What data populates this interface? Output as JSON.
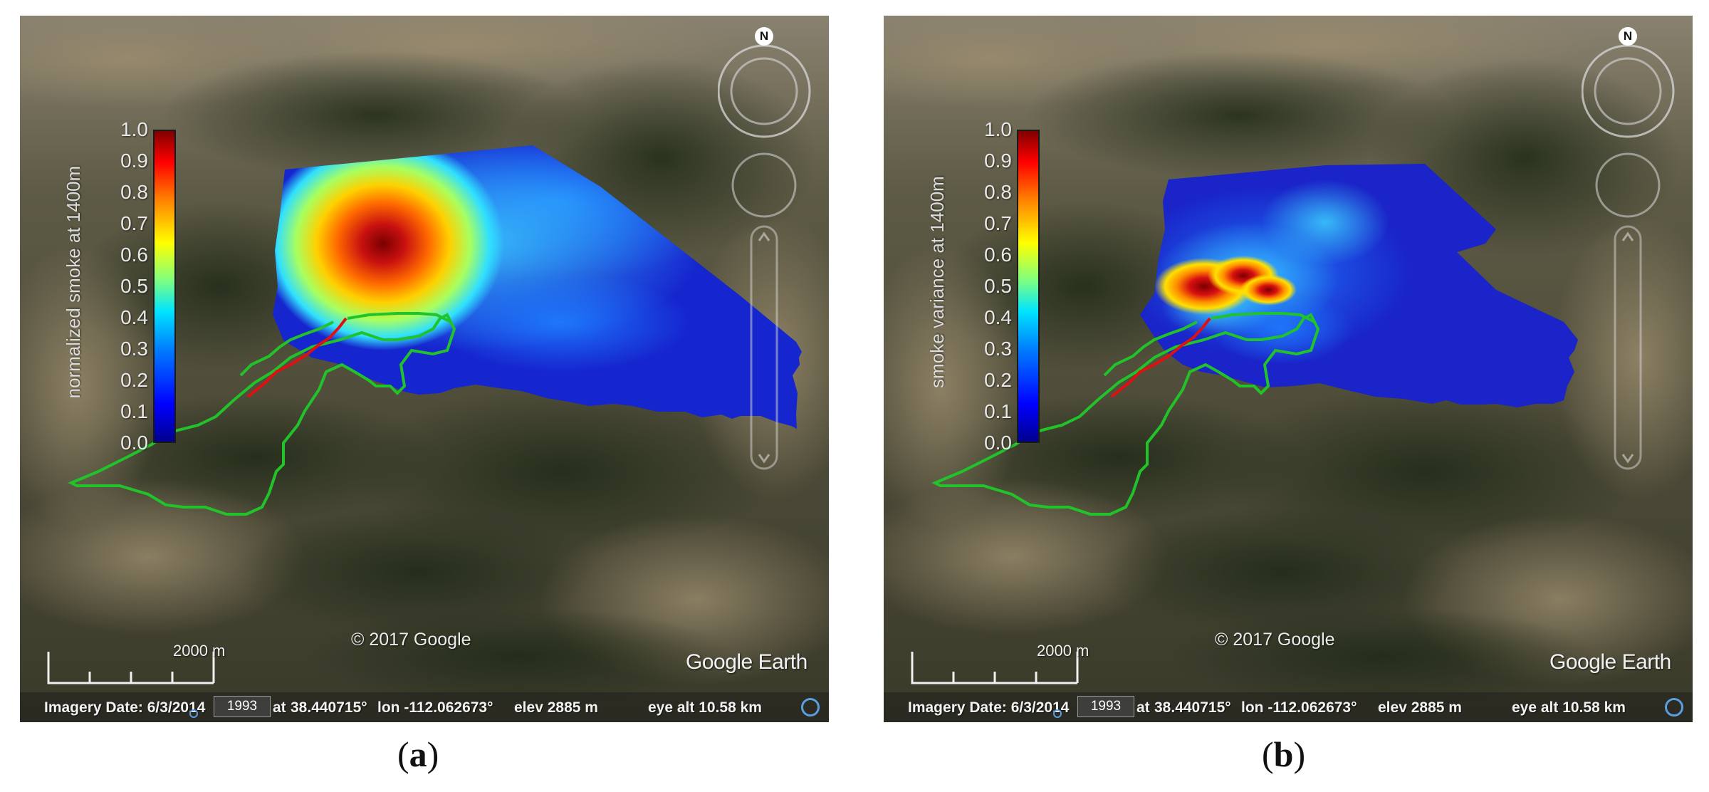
{
  "figure": {
    "panels": [
      {
        "id": "a",
        "caption_open": "(",
        "caption_letter": "a",
        "caption_close": ")",
        "colorbar": {
          "label": "normalized smoke at 1400m",
          "ticks": [
            "1.0",
            "0.9",
            "0.8",
            "0.7",
            "0.6",
            "0.5",
            "0.4",
            "0.3",
            "0.2",
            "0.1",
            "0.0"
          ],
          "colormap": "jet"
        },
        "scale_label": "2000 m",
        "copyright": "© 2017 Google",
        "logo": "Google Earth",
        "compass_label": "N",
        "status": {
          "imagery_date": "Imagery Date: 6/3/2014",
          "year": "1993",
          "lat_fragment": "at",
          "lat": "38.440715°",
          "lon": "lon -112.062673°",
          "elev": "elev  2885 m",
          "eye_alt": "eye alt  10.58 km"
        }
      },
      {
        "id": "b",
        "caption_open": "(",
        "caption_letter": "b",
        "caption_close": ")",
        "colorbar": {
          "label": "smoke variance at 1400m",
          "ticks": [
            "1.0",
            "0.9",
            "0.8",
            "0.7",
            "0.6",
            "0.5",
            "0.4",
            "0.3",
            "0.2",
            "0.1",
            "0.0"
          ],
          "colormap": "jet"
        },
        "scale_label": "2000 m",
        "copyright": "© 2017 Google",
        "logo": "Google Earth",
        "compass_label": "N",
        "status": {
          "imagery_date": "Imagery Date: 6/3/2014",
          "year": "1993",
          "lat_fragment": "at",
          "lat": "38.440715°",
          "lon": "lon -112.062673°",
          "elev": "elev  2885 m",
          "eye_alt": "eye alt  10.58 km"
        }
      }
    ],
    "colors": {
      "fire_perimeter": "#22c32a",
      "fire_line": "#e01010",
      "plume_low": "#1a1ad8",
      "plume_high": "#8c0000"
    }
  }
}
